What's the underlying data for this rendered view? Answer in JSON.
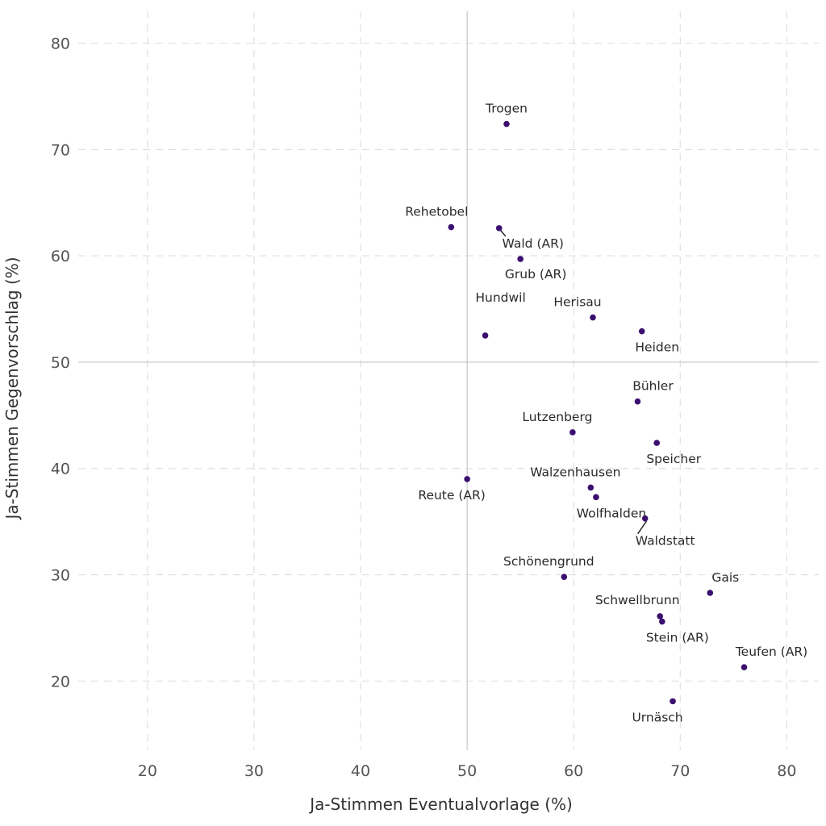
{
  "chart_data": {
    "type": "scatter",
    "title": "",
    "xlabel": "Ja-Stimmen Eventualvorlage (%)",
    "ylabel": "Ja-Stimmen Gegenvorschlag (%)",
    "xlim": [
      13.5,
      83
    ],
    "ylim": [
      13.5,
      83
    ],
    "xticks": [
      20,
      30,
      40,
      50,
      60,
      70,
      80
    ],
    "yticks": [
      20,
      30,
      40,
      50,
      60,
      70,
      80
    ],
    "grid": true,
    "reference_lines": {
      "x": 50,
      "y": 50
    },
    "point_color": "#3b0f70",
    "points": [
      {
        "name": "Trogen",
        "x": 53.7,
        "y": 72.4
      },
      {
        "name": "Rehetobel",
        "x": 48.5,
        "y": 62.7
      },
      {
        "name": "Wald (AR)",
        "x": 53.0,
        "y": 62.6
      },
      {
        "name": "Grub (AR)",
        "x": 55.0,
        "y": 59.7
      },
      {
        "name": "Herisau",
        "x": 61.8,
        "y": 54.2
      },
      {
        "name": "Hundwil",
        "x": 51.7,
        "y": 52.5
      },
      {
        "name": "Heiden",
        "x": 66.4,
        "y": 52.9
      },
      {
        "name": "Bühler",
        "x": 66.0,
        "y": 46.3
      },
      {
        "name": "Lutzenberg",
        "x": 59.9,
        "y": 43.4
      },
      {
        "name": "Speicher",
        "x": 67.8,
        "y": 42.4
      },
      {
        "name": "Reute (AR)",
        "x": 50.0,
        "y": 39.0
      },
      {
        "name": "Walzenhausen",
        "x": 61.6,
        "y": 38.2
      },
      {
        "name": "Wolfhalden",
        "x": 62.1,
        "y": 37.3
      },
      {
        "name": "Waldstatt",
        "x": 66.7,
        "y": 35.3
      },
      {
        "name": "Schönengrund",
        "x": 59.1,
        "y": 29.8
      },
      {
        "name": "Gais",
        "x": 72.8,
        "y": 28.3
      },
      {
        "name": "Schwellbrunn",
        "x": 68.1,
        "y": 26.1
      },
      {
        "name": "Stein (AR)",
        "x": 68.3,
        "y": 25.6
      },
      {
        "name": "Teufen (AR)",
        "x": 76.0,
        "y": 21.3
      },
      {
        "name": "Urnäsch",
        "x": 69.3,
        "y": 18.1
      }
    ]
  }
}
